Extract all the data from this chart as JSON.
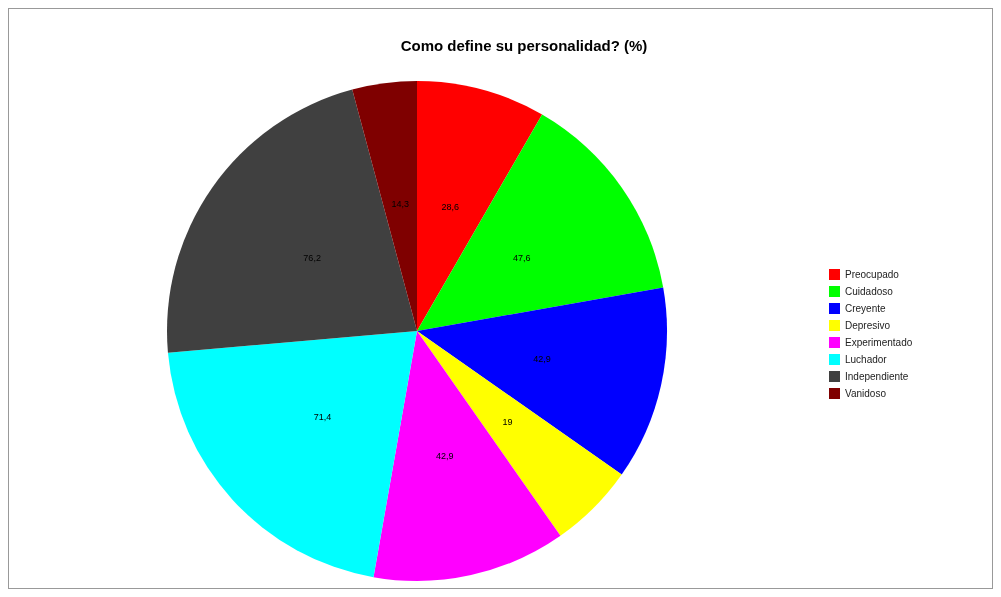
{
  "chart_data": {
    "type": "pie",
    "title": "Como define su personalidad? (%)",
    "categories": [
      "Preocupado",
      "Cuidadoso",
      "Creyente",
      "Depresivo",
      "Experimentado",
      "Luchador",
      "Independiente",
      "Vanidoso"
    ],
    "values": [
      28.6,
      47.6,
      42.9,
      19,
      42.9,
      71.4,
      76.2,
      14.3
    ],
    "value_labels": [
      "28,6",
      "47,6",
      "42,9",
      "19",
      "42,9",
      "71,4",
      "76,2",
      "14,3"
    ],
    "colors": [
      "#ff0000",
      "#00ff00",
      "#0000ff",
      "#ffff00",
      "#ff00ff",
      "#00ffff",
      "#404040",
      "#7f0000"
    ],
    "legend": "right"
  }
}
